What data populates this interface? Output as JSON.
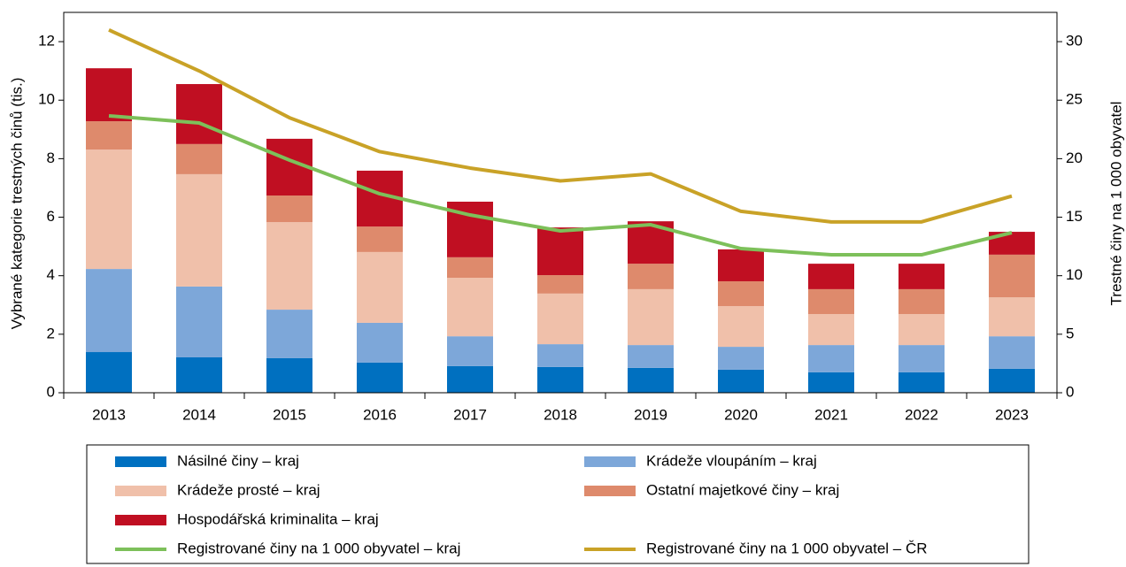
{
  "chart_data": {
    "type": "bar",
    "stacked": true,
    "y_label": "Vybrané kategorie trestných činů (tis.)",
    "y2_label": "Trestné činy na 1 000 obyvatel",
    "categories": [
      "2013",
      "2014",
      "2015",
      "2016",
      "2017",
      "2018",
      "2019",
      "2020",
      "2021",
      "2022",
      "2023"
    ],
    "ylim": [
      0,
      13
    ],
    "yticks": [
      0,
      2,
      4,
      6,
      8,
      10,
      12
    ],
    "y2lim": [
      0,
      32.5
    ],
    "y2ticks": [
      0,
      5,
      10,
      15,
      20,
      25,
      30
    ],
    "series": [
      {
        "name": "Násilné činy – kraj",
        "type": "bar",
        "color": "#0070c0",
        "values": [
          1.39,
          1.21,
          1.18,
          1.03,
          0.91,
          0.88,
          0.85,
          0.79,
          0.7,
          0.7,
          0.82
        ]
      },
      {
        "name": "Krádeže vloupáním – kraj",
        "type": "bar",
        "color": "#7da7d9",
        "values": [
          2.84,
          2.42,
          1.66,
          1.36,
          1.02,
          0.78,
          0.78,
          0.78,
          0.93,
          0.93,
          1.11
        ]
      },
      {
        "name": "Krádeže prosté – kraj",
        "type": "bar",
        "color": "#f0c0aa",
        "values": [
          4.08,
          3.84,
          2.99,
          2.42,
          2.0,
          1.73,
          1.91,
          1.39,
          1.06,
          1.06,
          1.33
        ]
      },
      {
        "name": "Ostatní majetkové činy – kraj",
        "type": "bar",
        "color": "#de8a6c",
        "values": [
          0.97,
          1.03,
          0.91,
          0.87,
          0.7,
          0.63,
          0.87,
          0.85,
          0.85,
          0.85,
          1.46
        ]
      },
      {
        "name": "Hospodářská kriminalita – kraj",
        "type": "bar",
        "color": "#c00f22",
        "values": [
          1.81,
          2.05,
          1.94,
          1.91,
          1.9,
          1.63,
          1.45,
          1.09,
          0.87,
          0.87,
          0.78
        ]
      },
      {
        "name": "Registrované činy na 1 000 obyvatel – kraj",
        "type": "line",
        "axis": "y2",
        "color": "#7dc05a",
        "values": [
          23.66,
          23.05,
          19.88,
          17.0,
          15.19,
          13.83,
          14.36,
          12.32,
          11.79,
          11.79,
          13.68
        ]
      },
      {
        "name": "Registrované činy na 1 000 obyvatel – ČR",
        "type": "line",
        "axis": "y2",
        "color": "#c9a227",
        "values": [
          31.0,
          27.5,
          23.5,
          20.6,
          19.2,
          18.1,
          18.7,
          15.5,
          14.6,
          14.6,
          16.8
        ]
      }
    ]
  }
}
